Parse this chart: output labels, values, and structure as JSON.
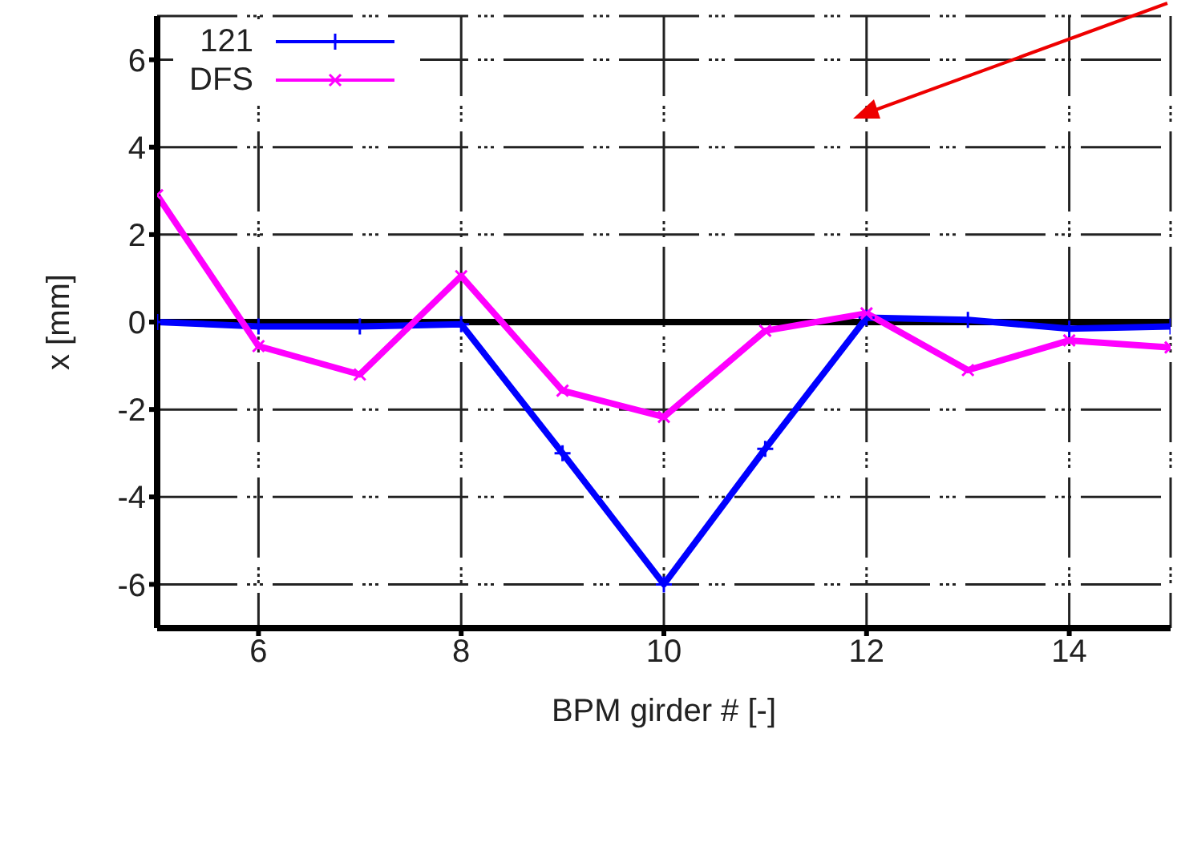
{
  "chart_data": {
    "type": "line",
    "xlabel": "BPM girder # [-]",
    "ylabel": "x [mm]",
    "x": [
      5,
      6,
      7,
      8,
      9,
      10,
      11,
      12,
      13,
      14,
      15
    ],
    "series": [
      {
        "name": "121",
        "color": "#0000ff",
        "values": [
          0,
          -0.1,
          -0.1,
          -0.05,
          -3.0,
          -6.0,
          -2.9,
          0.1,
          0.05,
          -0.15,
          -0.1
        ]
      },
      {
        "name": "DFS",
        "color": "#ff00ff",
        "values": [
          2.9,
          -0.55,
          -1.2,
          1.05,
          -1.57,
          -2.17,
          -0.2,
          0.2,
          -1.1,
          -0.42,
          -0.58
        ]
      }
    ],
    "xlim": [
      5,
      15
    ],
    "xticks": [
      6,
      8,
      10,
      12,
      14
    ],
    "ylim": [
      -7,
      7
    ],
    "yticks": [
      -6,
      -4,
      -2,
      0,
      2,
      4,
      6
    ],
    "ref_lines": [
      {
        "axis": "y",
        "value": 0,
        "color": "#000000"
      }
    ],
    "grid": true,
    "legend": "top left",
    "marker": "cross",
    "line_style": "solid"
  }
}
